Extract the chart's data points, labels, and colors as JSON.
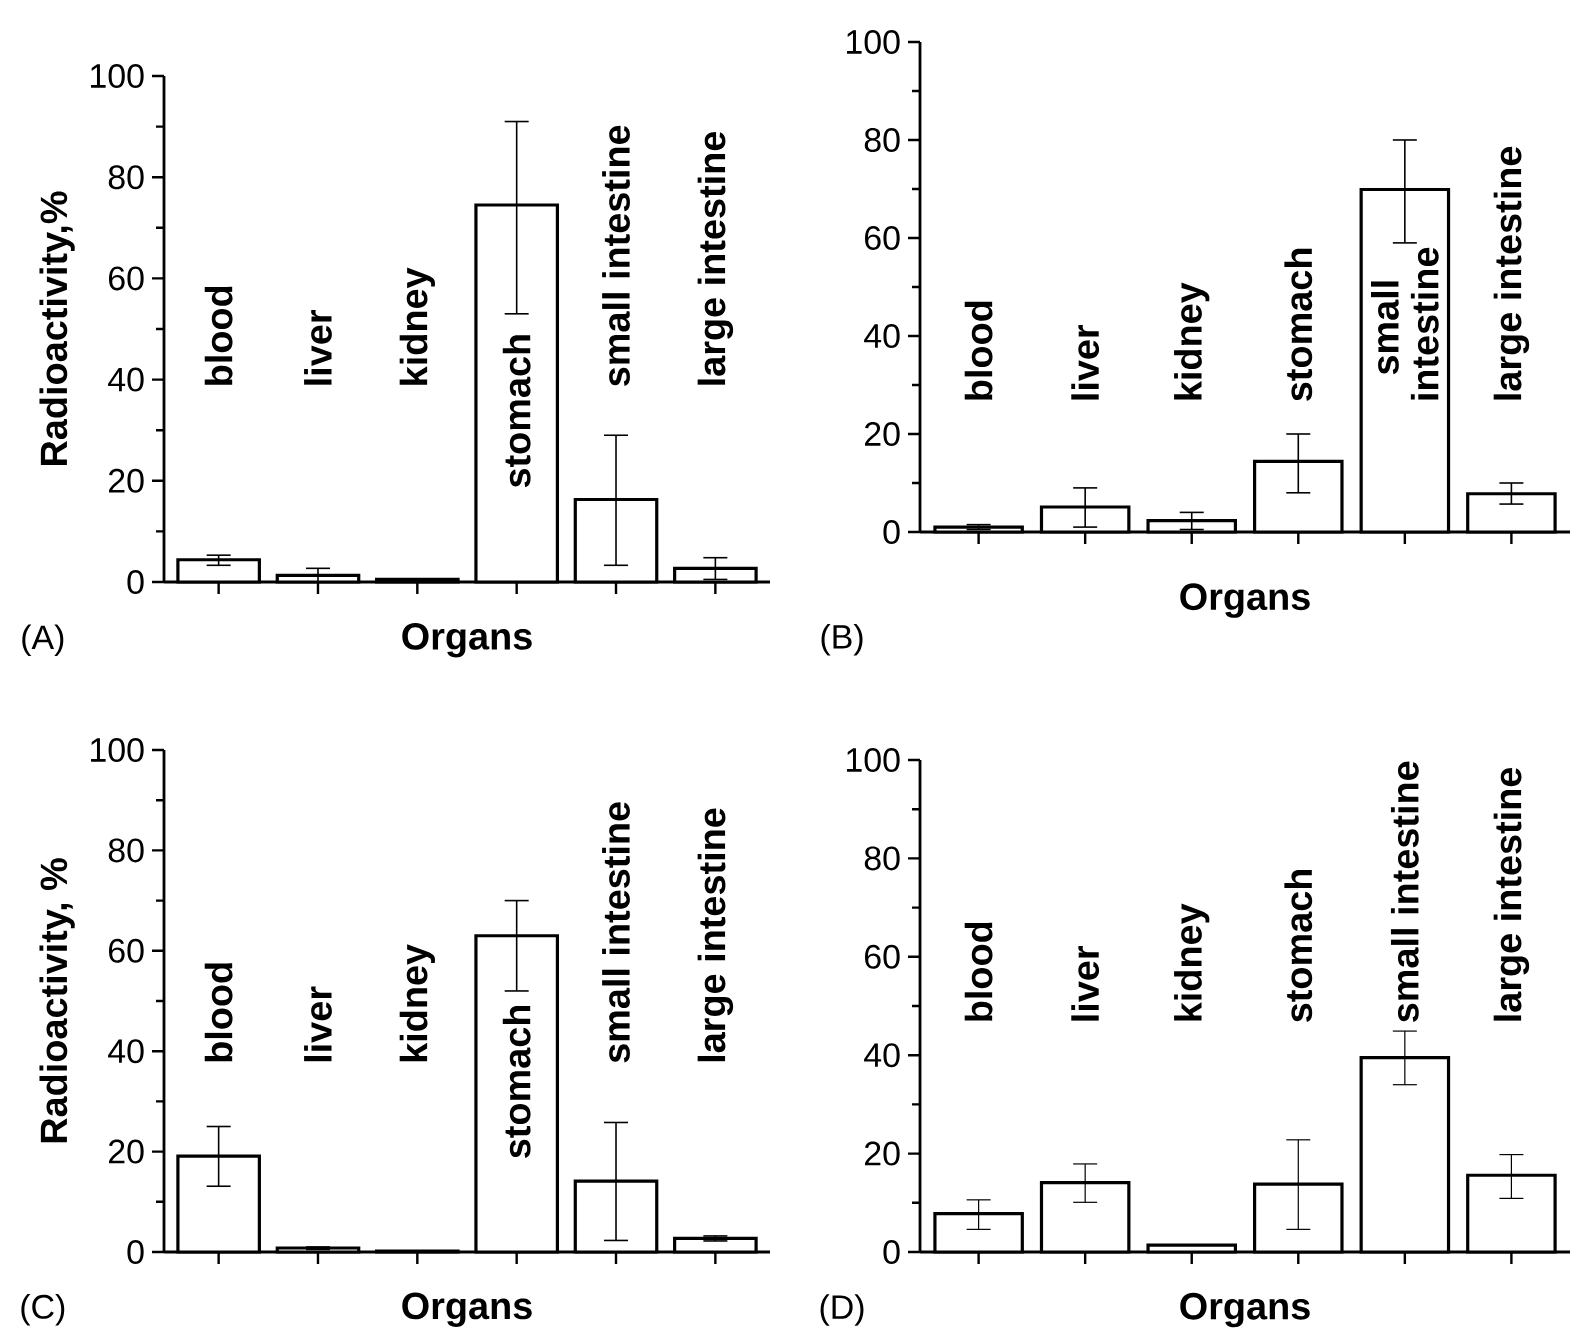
{
  "chart_data": [
    {
      "type": "bar",
      "categories": [
        "blood",
        "liver",
        "kidney",
        "stomach",
        "small intestine",
        "large intestine"
      ],
      "values": [
        4.4,
        1.3,
        0.5,
        74.5,
        16.3,
        2.7
      ],
      "errors": [
        [
          3.3,
          5.3
        ],
        [
          0,
          2.7
        ],
        null,
        [
          53,
          91
        ],
        [
          3.3,
          29
        ],
        [
          0.5,
          4.8
        ]
      ],
      "color": "#000000",
      "ylim": [
        0,
        100
      ],
      "yticks": [
        0,
        20,
        40,
        60,
        80,
        100
      ],
      "xlabel": "Organs",
      "ylabel": "Radioactivity,%",
      "annotations": [
        "(A)"
      ]
    },
    {
      "type": "bar",
      "categories": [
        "blood",
        "liver",
        "kidney",
        "stomach",
        "small intestine",
        "large intestine"
      ],
      "values": [
        1,
        5.1,
        2.3,
        14.4,
        69.9,
        7.8
      ],
      "errors": [
        [
          0.5,
          1.5
        ],
        [
          1,
          9
        ],
        [
          0.5,
          4
        ],
        [
          8,
          20
        ],
        [
          59,
          80
        ],
        [
          5.7,
          10
        ]
      ],
      "color": "#000000",
      "ylim": [
        0,
        100
      ],
      "yticks": [
        0,
        20,
        40,
        60,
        80,
        100
      ],
      "xlabel": "Organs",
      "annotations": [
        "(B)"
      ]
    },
    {
      "type": "bar",
      "categories": [
        "blood",
        "liver",
        "kidney",
        "stomach",
        "small intestine",
        "large intestine"
      ],
      "values": [
        19.1,
        0.8,
        0.2,
        63,
        14.1,
        2.7
      ],
      "errors": [
        [
          13.1,
          25
        ],
        [
          0.5,
          1
        ],
        null,
        [
          52,
          70
        ],
        [
          2.3,
          25.8
        ],
        [
          2.2,
          3.2
        ]
      ],
      "color": "#000000",
      "ylim": [
        0,
        100
      ],
      "yticks": [
        0,
        20,
        40,
        60,
        80,
        100
      ],
      "xlabel": "Organs",
      "ylabel": "Radioactivity, %",
      "annotations": [
        "(C)"
      ]
    },
    {
      "type": "bar",
      "categories": [
        "blood",
        "liver",
        "kidney",
        "stomach",
        "small intestine",
        "large intestine"
      ],
      "values": [
        7.8,
        14.1,
        1.4,
        13.8,
        39.5,
        15.6
      ],
      "errors": [
        [
          4.6,
          10.6
        ],
        [
          10.1,
          17.9
        ],
        null,
        [
          4.6,
          22.8
        ],
        [
          34,
          44.9
        ],
        [
          10.9,
          19.8
        ]
      ],
      "color": "#000000",
      "ylim": [
        0,
        100
      ],
      "yticks": [
        0,
        20,
        40,
        60,
        80,
        100
      ],
      "xlabel": "Organs",
      "annotations": [
        "(D)"
      ]
    }
  ]
}
